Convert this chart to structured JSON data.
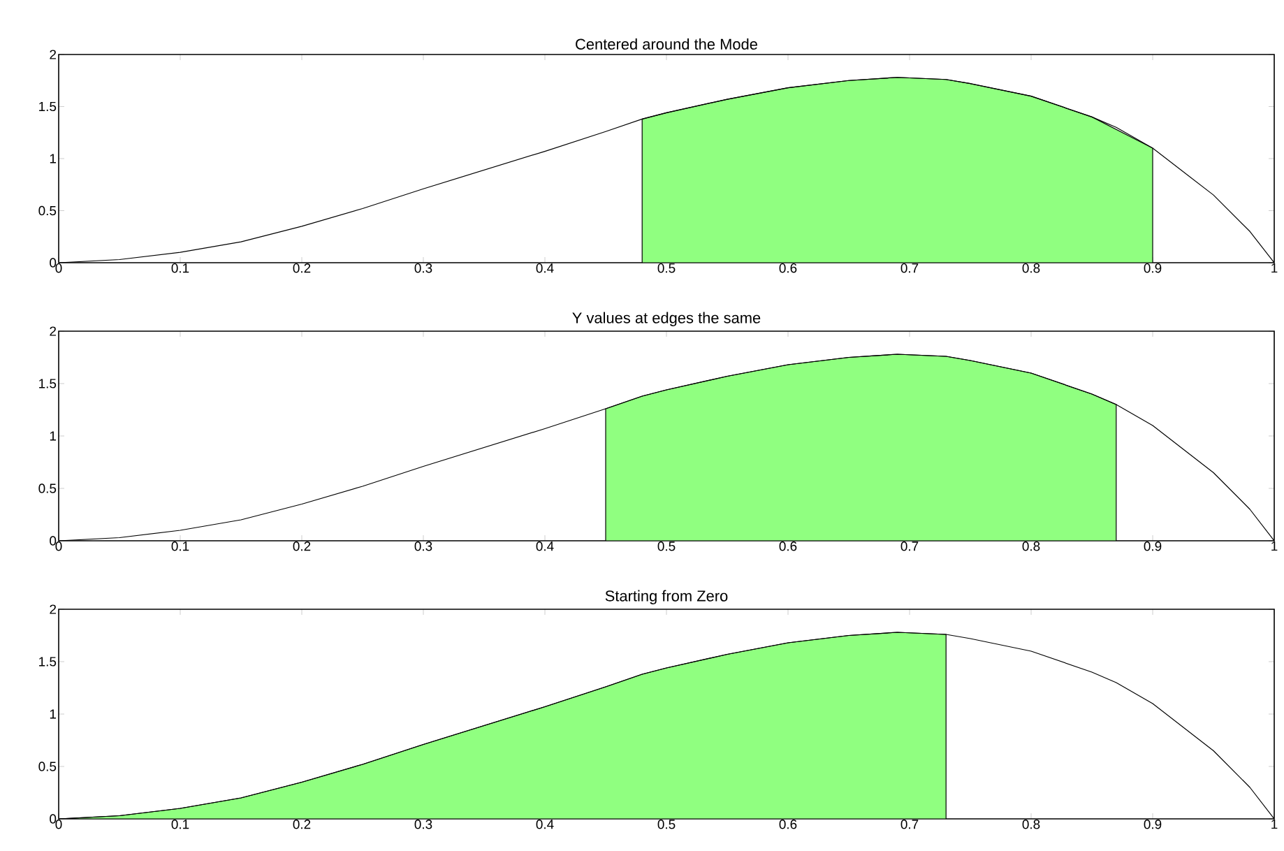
{
  "chart_data": [
    {
      "type": "line",
      "title": "Centered around the Mode",
      "x": [
        0,
        0.05,
        0.1,
        0.15,
        0.2,
        0.25,
        0.3,
        0.35,
        0.4,
        0.45,
        0.48,
        0.5,
        0.55,
        0.6,
        0.65,
        0.69,
        0.73,
        0.75,
        0.8,
        0.85,
        0.87,
        0.9,
        0.95,
        0.98,
        1.0
      ],
      "series": [
        {
          "color": "#000000",
          "values": [
            0,
            0.03,
            0.1,
            0.2,
            0.35,
            0.52,
            0.71,
            0.89,
            1.07,
            1.26,
            1.38,
            1.44,
            1.57,
            1.68,
            1.75,
            1.78,
            1.76,
            1.72,
            1.6,
            1.4,
            1.3,
            1.1,
            0.65,
            0.3,
            0
          ]
        },
        {
          "type": "area",
          "color": "#90ff80",
          "x": [
            0.48,
            0.5,
            0.55,
            0.6,
            0.65,
            0.69,
            0.73,
            0.75,
            0.8,
            0.85,
            0.9
          ],
          "values": [
            1.38,
            1.44,
            1.57,
            1.68,
            1.75,
            1.78,
            1.76,
            1.72,
            1.6,
            1.4,
            1.1
          ]
        }
      ],
      "xlim": [
        0,
        1
      ],
      "ylim": [
        0,
        2
      ],
      "xticks": [
        0,
        0.1,
        0.2,
        0.3,
        0.4,
        0.5,
        0.6,
        0.7,
        0.8,
        0.9,
        1
      ],
      "yticks": [
        0,
        0.5,
        1,
        1.5,
        2
      ]
    },
    {
      "type": "line",
      "title": "Y values at edges the same",
      "x": [
        0,
        0.05,
        0.1,
        0.15,
        0.2,
        0.25,
        0.3,
        0.35,
        0.4,
        0.45,
        0.48,
        0.5,
        0.55,
        0.6,
        0.65,
        0.69,
        0.73,
        0.75,
        0.8,
        0.85,
        0.87,
        0.9,
        0.95,
        0.98,
        1.0
      ],
      "series": [
        {
          "color": "#000000",
          "values": [
            0,
            0.03,
            0.1,
            0.2,
            0.35,
            0.52,
            0.71,
            0.89,
            1.07,
            1.26,
            1.38,
            1.44,
            1.57,
            1.68,
            1.75,
            1.78,
            1.76,
            1.72,
            1.6,
            1.4,
            1.3,
            1.1,
            0.65,
            0.3,
            0
          ]
        },
        {
          "type": "area",
          "color": "#90ff80",
          "x": [
            0.45,
            0.48,
            0.5,
            0.55,
            0.6,
            0.65,
            0.69,
            0.73,
            0.75,
            0.8,
            0.85,
            0.87
          ],
          "values": [
            1.26,
            1.38,
            1.44,
            1.57,
            1.68,
            1.75,
            1.78,
            1.76,
            1.72,
            1.6,
            1.4,
            1.3
          ]
        }
      ],
      "xlim": [
        0,
        1
      ],
      "ylim": [
        0,
        2
      ],
      "xticks": [
        0,
        0.1,
        0.2,
        0.3,
        0.4,
        0.5,
        0.6,
        0.7,
        0.8,
        0.9,
        1
      ],
      "yticks": [
        0,
        0.5,
        1,
        1.5,
        2
      ]
    },
    {
      "type": "line",
      "title": "Starting from Zero",
      "x": [
        0,
        0.05,
        0.1,
        0.15,
        0.2,
        0.25,
        0.3,
        0.35,
        0.4,
        0.45,
        0.48,
        0.5,
        0.55,
        0.6,
        0.65,
        0.69,
        0.73,
        0.75,
        0.8,
        0.85,
        0.87,
        0.9,
        0.95,
        0.98,
        1.0
      ],
      "series": [
        {
          "color": "#000000",
          "values": [
            0,
            0.03,
            0.1,
            0.2,
            0.35,
            0.52,
            0.71,
            0.89,
            1.07,
            1.26,
            1.38,
            1.44,
            1.57,
            1.68,
            1.75,
            1.78,
            1.76,
            1.72,
            1.6,
            1.4,
            1.3,
            1.1,
            0.65,
            0.3,
            0
          ]
        },
        {
          "type": "area",
          "color": "#90ff80",
          "x": [
            0,
            0.05,
            0.1,
            0.15,
            0.2,
            0.25,
            0.3,
            0.35,
            0.4,
            0.45,
            0.48,
            0.5,
            0.55,
            0.6,
            0.65,
            0.69,
            0.73
          ],
          "values": [
            0,
            0.03,
            0.1,
            0.2,
            0.35,
            0.52,
            0.71,
            0.89,
            1.07,
            1.26,
            1.38,
            1.44,
            1.57,
            1.68,
            1.75,
            1.78,
            1.76
          ]
        }
      ],
      "xlim": [
        0,
        1
      ],
      "ylim": [
        0,
        2
      ],
      "xticks": [
        0,
        0.1,
        0.2,
        0.3,
        0.4,
        0.5,
        0.6,
        0.7,
        0.8,
        0.9,
        1
      ],
      "yticks": [
        0,
        0.5,
        1,
        1.5,
        2
      ]
    }
  ]
}
